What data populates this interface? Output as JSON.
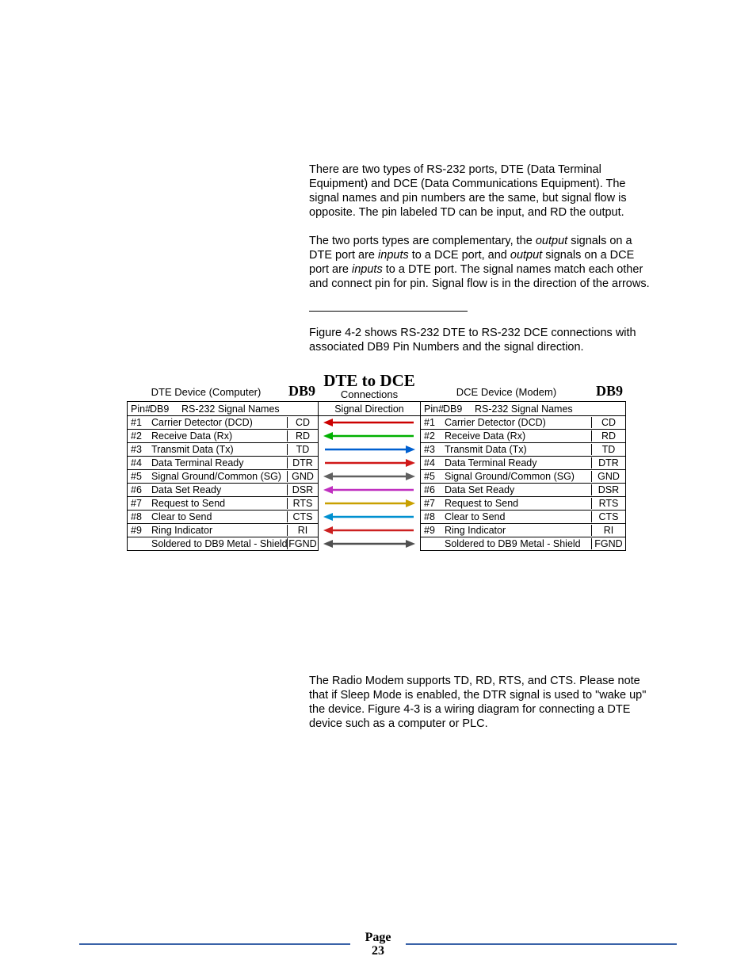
{
  "paragraphs": {
    "p1": "There are two types of RS-232 ports, DTE (Data Terminal Equipment) and DCE (Data Communications Equipment). The signal names and pin numbers are the same, but signal flow is opposite. The pin labeled TD can be input, and RD the output.",
    "p2a": "The two ports types are complementary, the ",
    "p2b": "output",
    "p2c": " signals on a DTE port are ",
    "p2d": "inputs",
    "p2e": " to a DCE port, and ",
    "p2f": "output",
    "p2g": " signals on a DCE port are ",
    "p2h": "inputs",
    "p2i": " to a DTE port. The signal names match each other and connect pin for pin. Signal flow is in the direction of the arrows.",
    "p3": "Figure 4-2 shows RS-232 DTE to RS-232 DCE connections with associated DB9 Pin Numbers and the signal direction.",
    "p4": "The Radio Modem supports TD, RD, RTS, and CTS. Please note that if Sleep Mode is enabled, the DTR signal is used to \"wake up\" the device. Figure 4-3 is a wiring diagram for connecting a DTE device such as a computer or PLC."
  },
  "diagram": {
    "left_device": "DTE Device (Computer)",
    "right_device": "DCE Device (Modem)",
    "db9_label": "DB9",
    "center_title": "DTE to DCE",
    "center_sub": "Connections",
    "pin_header": "Pin#",
    "db_header": "DB9",
    "signal_header": "RS-232 Signal Names",
    "direction_header": "Signal Direction",
    "rows": [
      {
        "pin": "#1",
        "name": "Carrier Detector (DCD)",
        "abbr": "CD",
        "color": "#cc0000",
        "dir": "left"
      },
      {
        "pin": "#2",
        "name": "Receive Data (Rx)",
        "abbr": "RD",
        "color": "#00b000",
        "dir": "left"
      },
      {
        "pin": "#3",
        "name": "Transmit Data (Tx)",
        "abbr": "TD",
        "color": "#0060d0",
        "dir": "right"
      },
      {
        "pin": "#4",
        "name": "Data Terminal Ready",
        "abbr": "DTR",
        "color": "#d01818",
        "dir": "right"
      },
      {
        "pin": "#5",
        "name": "Signal Ground/Common (SG)",
        "abbr": "GND",
        "color": "#606060",
        "dir": "both"
      },
      {
        "pin": "#6",
        "name": "Data Set Ready",
        "abbr": "DSR",
        "color": "#c030c0",
        "dir": "left"
      },
      {
        "pin": "#7",
        "name": "Request to Send",
        "abbr": "RTS",
        "color": "#c8a000",
        "dir": "right"
      },
      {
        "pin": "#8",
        "name": "Clear to Send",
        "abbr": "CTS",
        "color": "#0090d0",
        "dir": "left"
      },
      {
        "pin": "#9",
        "name": "Ring Indicator",
        "abbr": "RI",
        "color": "#cc2020",
        "dir": "left"
      },
      {
        "pin": "",
        "name": "Soldered to DB9 Metal - Shield",
        "abbr": "FGND",
        "color": "#505050",
        "dir": "both",
        "abbr_r": "FGND"
      }
    ],
    "arrow_stroke_width": 2.5,
    "arrow_bg_width": 120
  },
  "footer": {
    "page_label": "Page",
    "page_num": "23",
    "line_color": "#3a63a8"
  }
}
